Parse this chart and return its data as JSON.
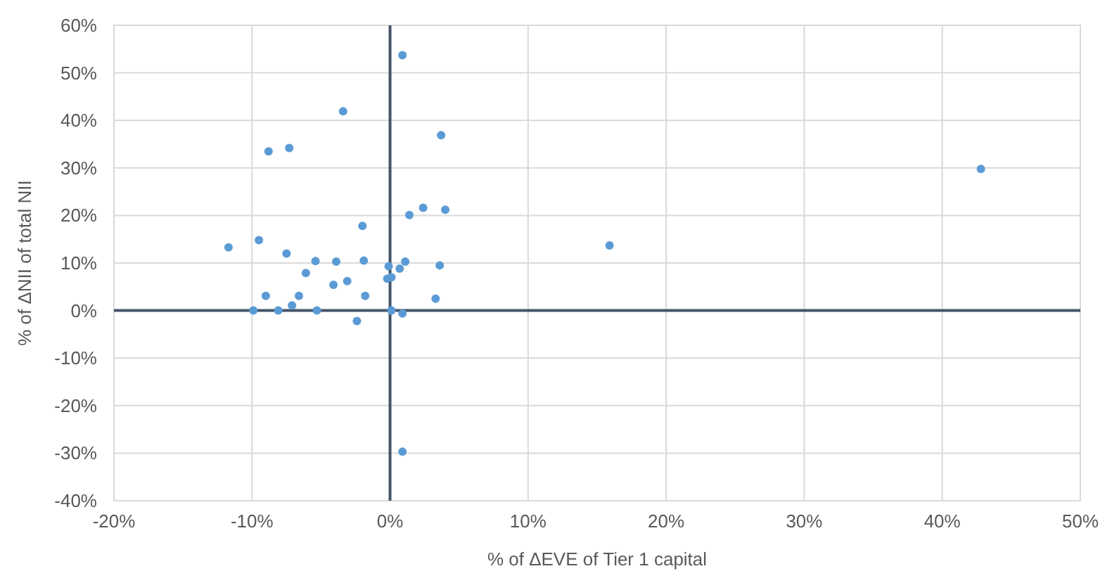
{
  "chart_data": {
    "type": "scatter",
    "xlabel": "% of ΔEVE of Tier 1 capital",
    "ylabel": "% of ΔNII of total NII",
    "xlim": [
      -20,
      50
    ],
    "xticks": [
      {
        "value": -20,
        "label": "-20%"
      },
      {
        "value": -10,
        "label": "-10%"
      },
      {
        "value": 0,
        "label": "0%"
      },
      {
        "value": 10,
        "label": "10%"
      },
      {
        "value": 20,
        "label": "20%"
      },
      {
        "value": 30,
        "label": "30%"
      },
      {
        "value": 40,
        "label": "40%"
      },
      {
        "value": 50,
        "label": "50%"
      }
    ],
    "ylim": [
      -40,
      60
    ],
    "yticks": [
      {
        "value": -40,
        "label": "-40%"
      },
      {
        "value": -30,
        "label": "-30%"
      },
      {
        "value": -20,
        "label": "-20%"
      },
      {
        "value": -10,
        "label": "-10%"
      },
      {
        "value": 0,
        "label": "0%"
      },
      {
        "value": 10,
        "label": "10%"
      },
      {
        "value": 20,
        "label": "20%"
      },
      {
        "value": 30,
        "label": "30%"
      },
      {
        "value": 40,
        "label": "40%"
      },
      {
        "value": 50,
        "label": "50%"
      },
      {
        "value": 60,
        "label": "60%"
      }
    ],
    "grid": true,
    "marker": "circle",
    "series": [
      {
        "color": "#5b9bd5",
        "x": [
          -3.4,
          3.7,
          -8.8,
          -7.3,
          1.4,
          2.4,
          4.0,
          -2.0,
          -11.7,
          -9.5,
          -7.5,
          -5.4,
          -3.9,
          -1.9,
          -0.1,
          1.1,
          0.7,
          3.6,
          -6.1,
          -3.1,
          -4.1,
          -0.2,
          0.1,
          -9.0,
          -6.6,
          -1.8,
          3.3,
          -7.1,
          -9.9,
          -8.1,
          -5.3,
          0.1,
          0.9,
          -2.4,
          0.9,
          0.9,
          15.9,
          42.8
        ],
        "values": [
          41.9,
          36.9,
          33.5,
          34.2,
          20.1,
          21.6,
          21.2,
          17.8,
          13.3,
          14.8,
          12.0,
          10.4,
          10.3,
          10.5,
          9.3,
          10.3,
          8.8,
          9.5,
          7.9,
          6.2,
          5.4,
          6.7,
          7.0,
          3.1,
          3.1,
          3.1,
          2.5,
          1.1,
          0,
          0,
          0,
          0,
          -0.6,
          -2.2,
          53.7,
          -29.7,
          13.7,
          29.8
        ]
      }
    ]
  }
}
